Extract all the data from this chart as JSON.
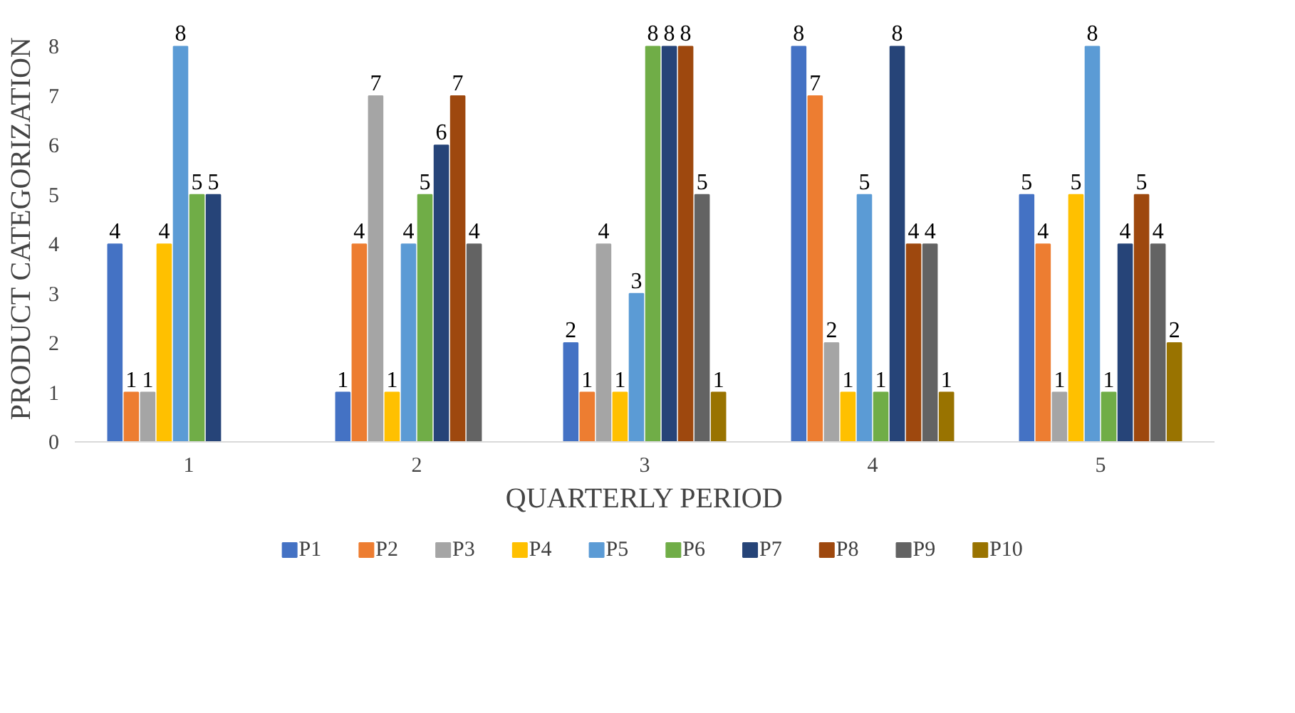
{
  "chart_data": {
    "type": "bar",
    "xlabel": "QUARTERLY PERIOD",
    "ylabel": "PRODUCT CATEGORIZATION",
    "categories": [
      "1",
      "2",
      "3",
      "4",
      "5"
    ],
    "series": [
      {
        "name": "P1",
        "color": "#4472c4",
        "values": [
          4,
          1,
          2,
          8,
          5
        ]
      },
      {
        "name": "P2",
        "color": "#ed7d31",
        "values": [
          1,
          4,
          1,
          7,
          4
        ]
      },
      {
        "name": "P3",
        "color": "#a5a5a5",
        "values": [
          1,
          7,
          4,
          2,
          1
        ]
      },
      {
        "name": "P4",
        "color": "#ffc000",
        "values": [
          4,
          1,
          1,
          1,
          5
        ]
      },
      {
        "name": "P5",
        "color": "#5b9bd5",
        "values": [
          8,
          4,
          3,
          5,
          8
        ]
      },
      {
        "name": "P6",
        "color": "#70ad47",
        "values": [
          5,
          5,
          8,
          1,
          1
        ]
      },
      {
        "name": "P7",
        "color": "#264478",
        "values": [
          5,
          6,
          8,
          8,
          4
        ]
      },
      {
        "name": "P8",
        "color": "#9e480e",
        "values": [
          null,
          7,
          8,
          4,
          5
        ]
      },
      {
        "name": "P9",
        "color": "#636363",
        "values": [
          null,
          4,
          5,
          4,
          4
        ]
      },
      {
        "name": "P10",
        "color": "#997300",
        "values": [
          null,
          null,
          1,
          1,
          2
        ]
      }
    ],
    "ylim": [
      0,
      8
    ],
    "yticks": [
      0,
      1,
      2,
      3,
      4,
      5,
      6,
      7,
      8
    ],
    "grid": false,
    "legend": "bottom",
    "data_labels": true
  }
}
